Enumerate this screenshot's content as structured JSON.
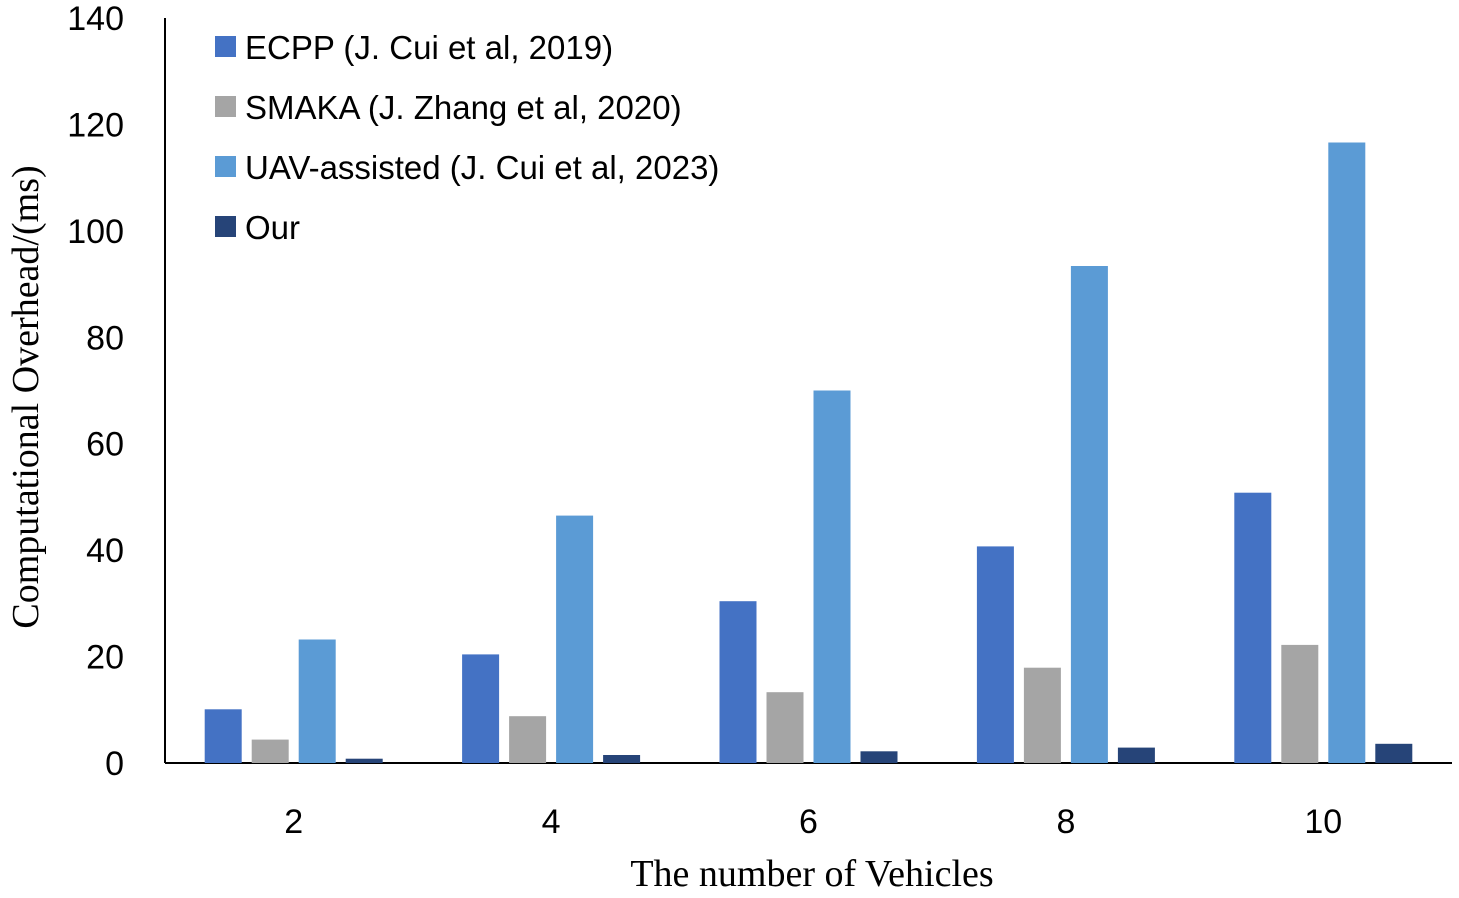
{
  "chart_data": {
    "type": "bar",
    "title": "",
    "xlabel": "The number of Vehicles",
    "ylabel": "Computational Overhead/(ms)",
    "ylim": [
      0,
      140
    ],
    "yticks": [
      0,
      20,
      40,
      60,
      80,
      100,
      120,
      140
    ],
    "categories": [
      "2",
      "4",
      "6",
      "8",
      "10"
    ],
    "series": [
      {
        "name": "ECPP (J. Cui et al, 2019)",
        "color": "#4472C4",
        "values": [
          10.1,
          20.4,
          30.4,
          40.7,
          50.8
        ]
      },
      {
        "name": "SMAKA (J. Zhang et al, 2020)",
        "color": "#A5A5A5",
        "values": [
          4.4,
          8.8,
          13.3,
          17.9,
          22.2
        ]
      },
      {
        "name": "UAV-assisted (J. Cui et al, 2023)",
        "color": "#5B9BD5",
        "values": [
          23.2,
          46.5,
          70.0,
          93.4,
          116.6
        ]
      },
      {
        "name": "Our",
        "color": "#264478",
        "values": [
          0.8,
          1.5,
          2.2,
          2.9,
          3.6
        ]
      }
    ],
    "legend_position": "top-left",
    "grid": false
  }
}
